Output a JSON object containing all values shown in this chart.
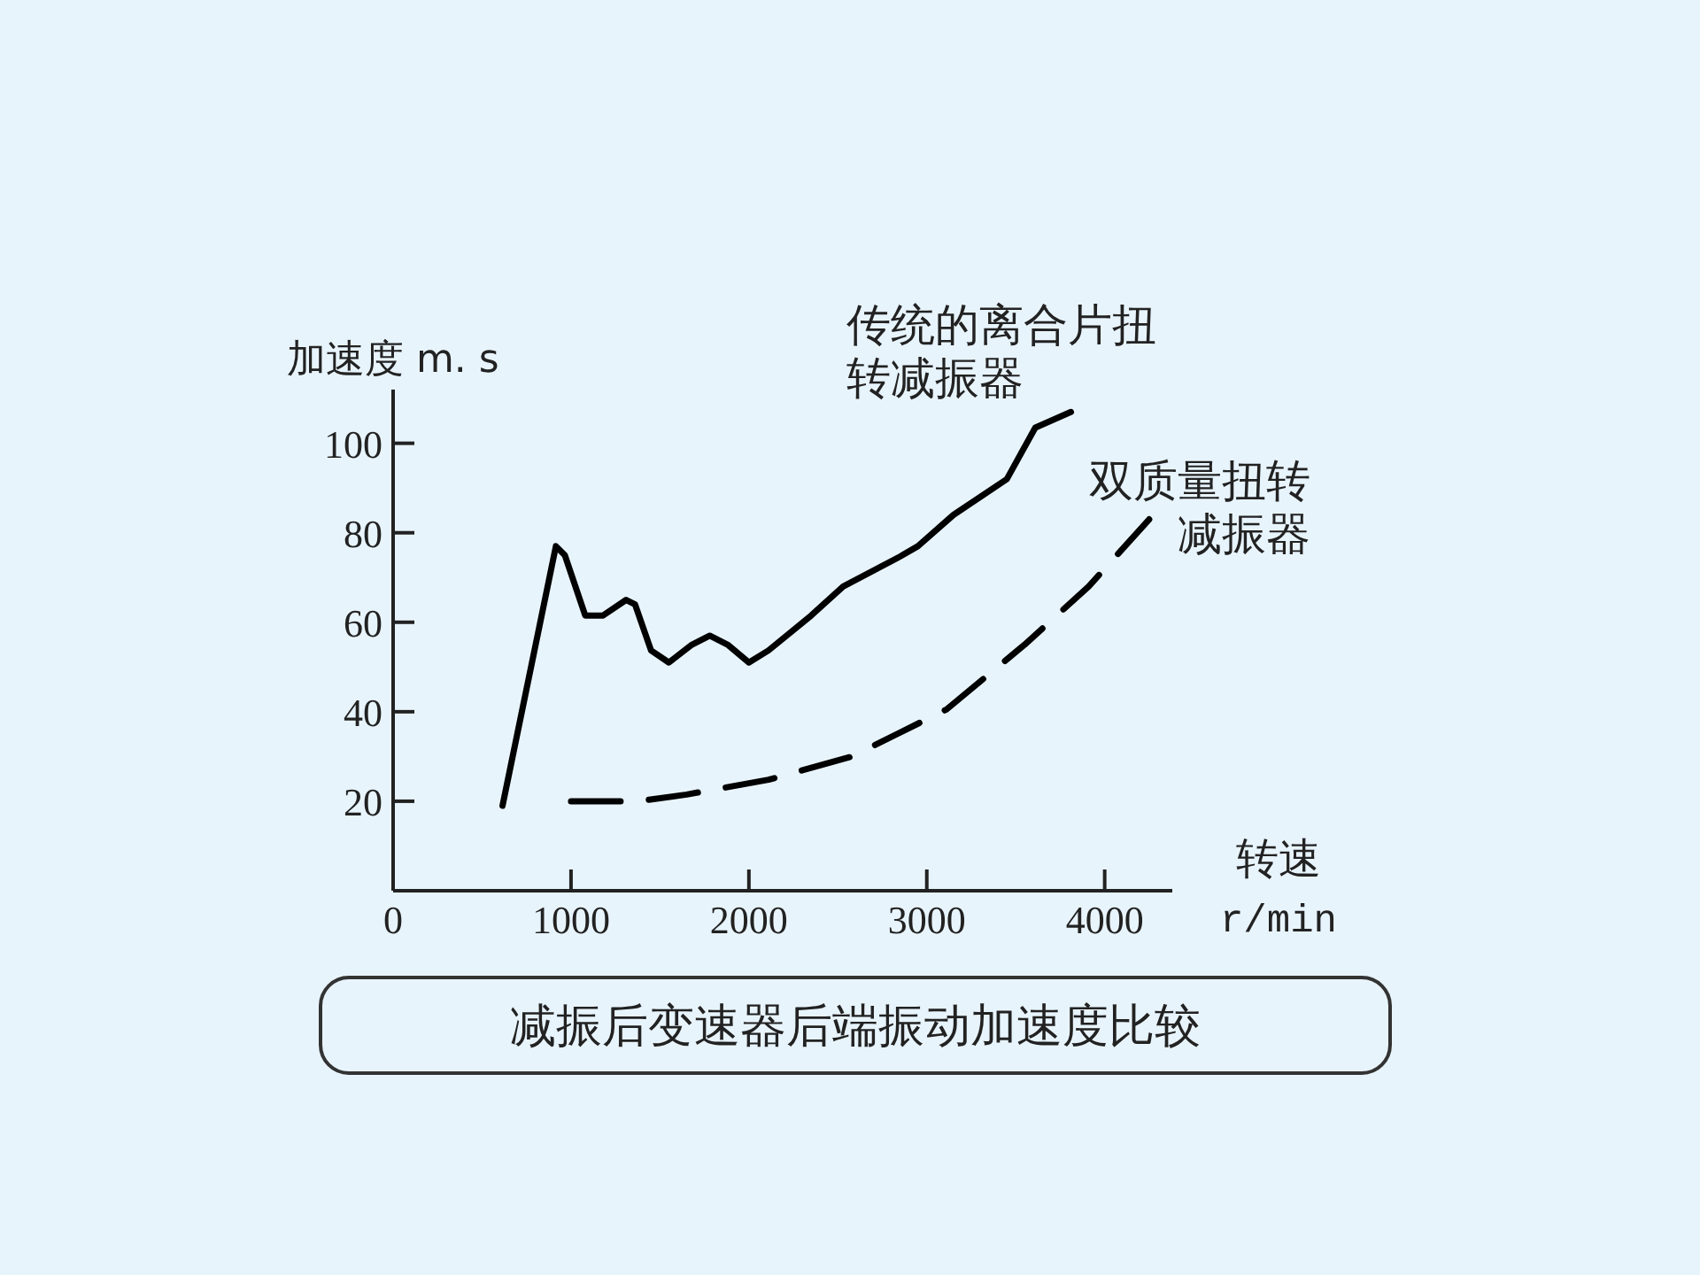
{
  "chart_data": {
    "type": "line",
    "title": "减振后变速器后端振动加速度比较",
    "xlabel": "转速\nr/min",
    "ylabel": "加速度 m. s",
    "xlim": [
      0,
      4380
    ],
    "ylim": [
      0,
      112
    ],
    "xticks": [
      0,
      1000,
      2000,
      3000,
      4000
    ],
    "yticks": [
      20,
      40,
      60,
      80,
      100
    ],
    "grid": false,
    "series": [
      {
        "name": "传统的离合片扭转减振器",
        "color": "#000000",
        "line_style": "solid",
        "x": [
          615,
          915,
          965,
          1080,
          1180,
          1310,
          1360,
          1450,
          1550,
          1680,
          1780,
          1880,
          2000,
          2110,
          2350,
          2530,
          2850,
          2950,
          3150,
          3450,
          3610,
          3810
        ],
        "values": [
          19,
          77,
          75,
          61.5,
          61.5,
          65,
          64,
          53.7,
          51,
          55,
          57,
          55,
          51,
          53.7,
          61.5,
          68,
          74.7,
          77,
          84,
          92,
          103.5,
          107
        ]
      },
      {
        "name": "双质量扭转减振器",
        "color": "#000000",
        "line_style": "dashed",
        "x": [
          1000,
          1380,
          1650,
          2110,
          2580,
          3110,
          3550,
          3910,
          4250
        ],
        "values": [
          20,
          20,
          21.5,
          24.8,
          30,
          40.5,
          55,
          68,
          83
        ]
      }
    ]
  }
}
